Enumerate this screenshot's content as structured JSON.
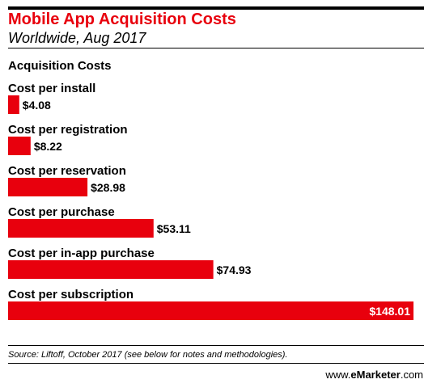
{
  "chart_data": {
    "type": "bar",
    "orientation": "horizontal",
    "title": "Mobile App Acquisition Costs",
    "subtitle": "Worldwide, Aug 2017",
    "series_heading": "Acquisition Costs",
    "categories": [
      "Cost per install",
      "Cost per registration",
      "Cost per reservation",
      "Cost per purchase",
      "Cost per in-app purchase",
      "Cost per subscription"
    ],
    "values": [
      4.08,
      8.22,
      28.98,
      53.11,
      74.93,
      148.01
    ],
    "value_labels": [
      "$4.08",
      "$8.22",
      "$28.98",
      "$53.11",
      "$74.93",
      "$148.01"
    ],
    "xlim": [
      0,
      148.01
    ],
    "grid": false,
    "legend": "none",
    "bar_color": "#e8000d"
  },
  "footer": {
    "source": "Source: Liftoff, October 2017 (see below for notes and methodologies).",
    "credit_prefix": "www.",
    "credit_brand": "eMarketer",
    "credit_suffix": ".com"
  }
}
